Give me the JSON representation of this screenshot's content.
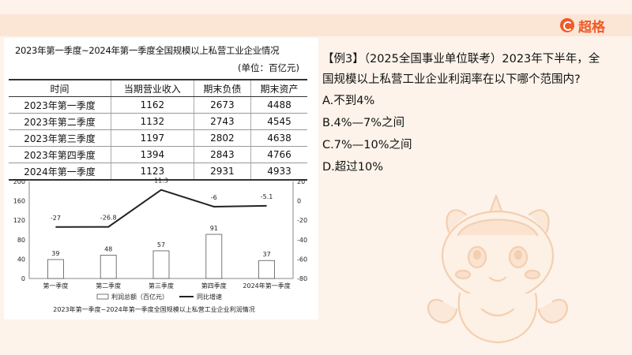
{
  "brand": {
    "icon": "brand-logo-icon",
    "name": "超格"
  },
  "table": {
    "title": "2023年第一季度~2024年第一季度全国规模以上私营工业企业情况",
    "unit": "(单位：百亿元)",
    "headers": [
      "时间",
      "当期营业收入",
      "期末负债",
      "期末资产"
    ],
    "rows": [
      [
        "2023年第一季度",
        "1162",
        "2673",
        "4488"
      ],
      [
        "2023年第二季度",
        "1132",
        "2743",
        "4545"
      ],
      [
        "2023年第三季度",
        "1197",
        "2802",
        "4638"
      ],
      [
        "2023年第四季度",
        "1394",
        "2843",
        "4766"
      ],
      [
        "2024年第一季度",
        "1123",
        "2931",
        "4933"
      ]
    ]
  },
  "chart_data": {
    "type": "bar",
    "title": "2023年第一季度~2024年第一季度全国规模以上私营工业企业利润情况",
    "categories": [
      "第一季度",
      "第二季度",
      "第三季度",
      "第四季度",
      "2024年第一季度"
    ],
    "series": [
      {
        "name": "利润总额（百亿元）",
        "type": "bar",
        "axis": "left",
        "values": [
          39,
          48,
          57,
          91,
          37
        ]
      },
      {
        "name": "同比增速",
        "type": "line",
        "axis": "right",
        "values": [
          -27,
          -26.8,
          11.3,
          -6,
          -5.1
        ]
      }
    ],
    "left_axis": {
      "ylim": [
        0,
        200
      ],
      "ticks": [
        0,
        40,
        80,
        120,
        160,
        200
      ]
    },
    "right_axis": {
      "ylim": [
        -80,
        20
      ],
      "ticks": [
        -80,
        -60,
        -40,
        -20,
        0,
        20
      ]
    },
    "legend_position": "bottom",
    "grid": false,
    "bar_color": "#ffffff",
    "line_color": "#222222"
  },
  "question": {
    "line1": "【例3】（2025全国事业单位联考）2023年下半年，全",
    "line2": "国规模以上私营工业企业利润率在以下哪个范围内?",
    "options": [
      "A.不到4%",
      "B.4%—7%之间",
      "C.7%—10%之间",
      "D.超过10%"
    ]
  },
  "mascot": {
    "icon": "unicorn-mascot-icon"
  },
  "colors": {
    "accent": "#ef5a28",
    "background": "#fdf3ea",
    "band": "#fbe6d6"
  }
}
